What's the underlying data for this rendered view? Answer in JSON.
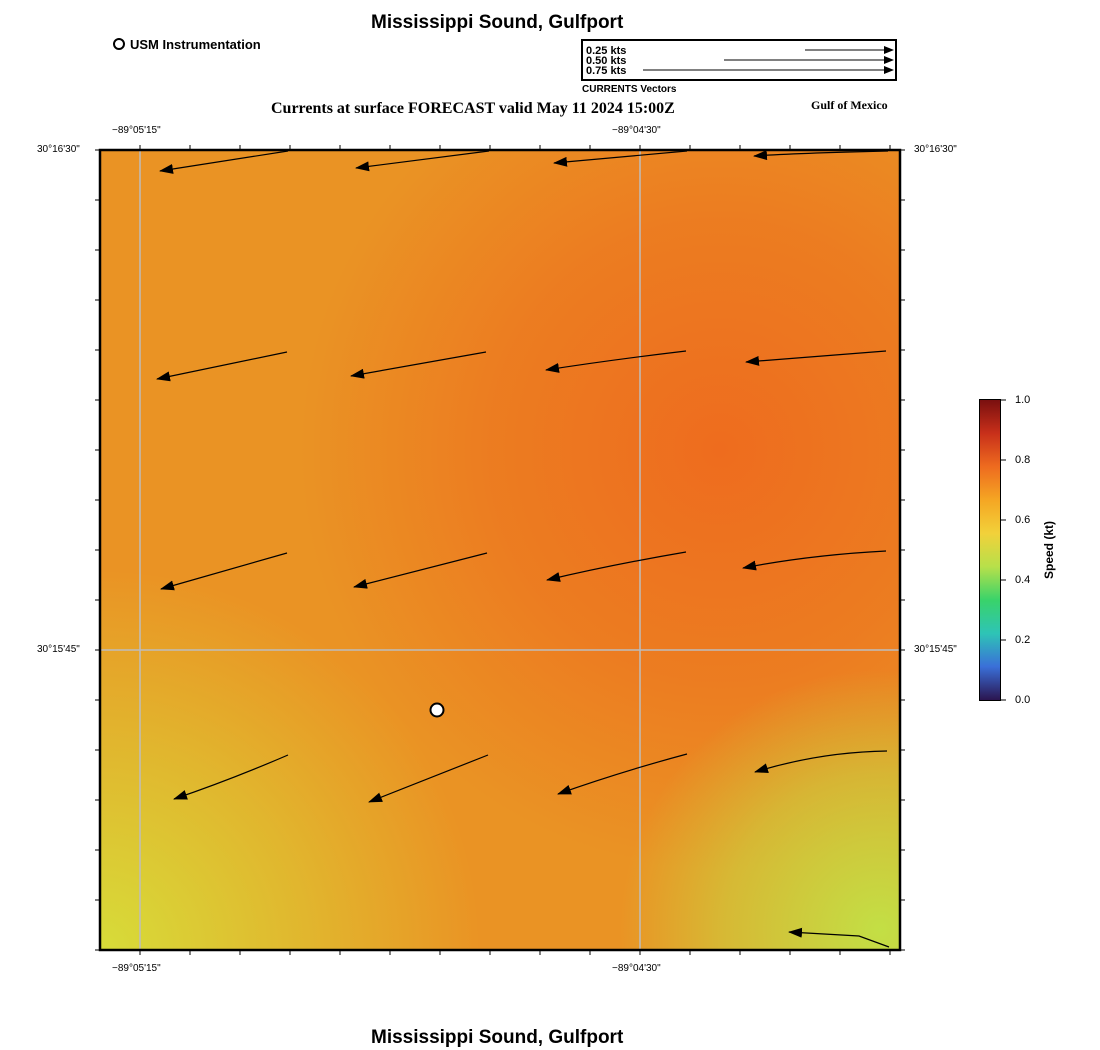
{
  "header": {
    "title": "Mississippi Sound, Gulfport",
    "instrument_label": "USM Instrumentation",
    "subtitle": "Currents at surface FORECAST valid May 11 2024 15:00Z",
    "region_label": "Gulf of Mexico",
    "footer_title": "Mississippi Sound, Gulfport"
  },
  "vector_legend": {
    "caption": "CURRENTS Vectors",
    "entries": [
      {
        "label": "0.25 kts",
        "speed": 0.25
      },
      {
        "label": "0.50 kts",
        "speed": 0.5
      },
      {
        "label": "0.75 kts",
        "speed": 0.75
      }
    ]
  },
  "axes": {
    "lon_labels": [
      "−89°05'15\"",
      "−89°04'30\""
    ],
    "lat_labels": [
      "30°16'30\"",
      "30°15'45\""
    ]
  },
  "colorbar": {
    "label": "Speed (kt)",
    "ticks": [
      "0.0",
      "0.2",
      "0.4",
      "0.6",
      "0.8",
      "1.0"
    ],
    "range": [
      0,
      1
    ],
    "colors": [
      "#2b1550",
      "#3a6fd8",
      "#2ec4b6",
      "#39d36a",
      "#b7e04a",
      "#f2d13a",
      "#f5a623",
      "#ee6b1f",
      "#c8301a",
      "#7a0f0f"
    ]
  },
  "field_colors": {
    "base": "#ea9324",
    "hotspot": "#ee6a1e",
    "low_speed": "#d6e03a",
    "weak": "#c3df45"
  },
  "station": {
    "name": "USM Instrumentation"
  }
}
